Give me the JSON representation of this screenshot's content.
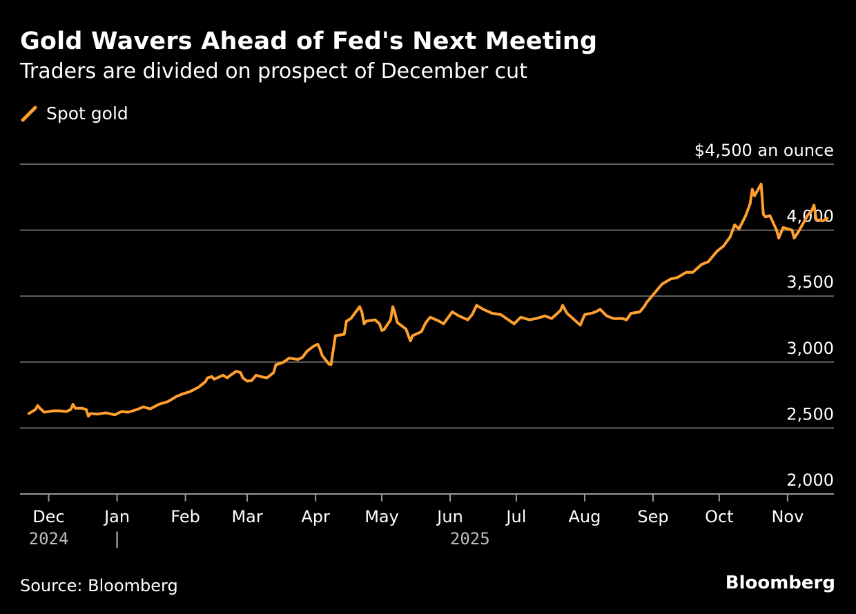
{
  "title": "Gold Wavers Ahead of Fed's Next Meeting",
  "subtitle": "Traders are divided on prospect of December cut",
  "source": "Source: Bloomberg",
  "logo": "Bloomberg",
  "colors": {
    "background": "#000000",
    "series": "#FF9F2E",
    "grid": "#666666",
    "text": "#FFFFFF",
    "year_label": "#BFBFBF"
  },
  "chart_data": {
    "type": "line",
    "ylim": [
      2000,
      4500
    ],
    "y_ticks": [
      {
        "value": 4500,
        "label": "$4,500 an ounce"
      },
      {
        "value": 4000,
        "label": "4,000"
      },
      {
        "value": 3500,
        "label": "3,500"
      },
      {
        "value": 3000,
        "label": "3,000"
      },
      {
        "value": 2500,
        "label": "2,500"
      },
      {
        "value": 2000,
        "label": "2,000"
      }
    ],
    "grid": true,
    "legend": "top-left",
    "xlim": [
      "2024-11-18",
      "2025-11-22"
    ],
    "x_ticks": [
      {
        "date": "2024-12-01",
        "label": "Dec"
      },
      {
        "date": "2025-01-01",
        "label": "Jan"
      },
      {
        "date": "2025-02-01",
        "label": "Feb"
      },
      {
        "date": "2025-03-01",
        "label": "Mar"
      },
      {
        "date": "2025-04-01",
        "label": "Apr"
      },
      {
        "date": "2025-05-01",
        "label": "May"
      },
      {
        "date": "2025-06-01",
        "label": "Jun"
      },
      {
        "date": "2025-07-01",
        "label": "Jul"
      },
      {
        "date": "2025-08-01",
        "label": "Aug"
      },
      {
        "date": "2025-09-01",
        "label": "Sep"
      },
      {
        "date": "2025-10-01",
        "label": "Oct"
      },
      {
        "date": "2025-11-01",
        "label": "Nov"
      }
    ],
    "year_labels": [
      {
        "label": "2024",
        "date": "2024-12-01"
      },
      {
        "label": "2025",
        "date": "2025-06-10"
      }
    ],
    "year_separator": "|",
    "series": [
      {
        "name": "Spot gold",
        "points": [
          [
            "2024-11-22",
            2610
          ],
          [
            "2024-11-25",
            2640
          ],
          [
            "2024-11-26",
            2670
          ],
          [
            "2024-11-27",
            2650
          ],
          [
            "2024-11-29",
            2620
          ],
          [
            "2024-12-03",
            2630
          ],
          [
            "2024-12-06",
            2630
          ],
          [
            "2024-12-09",
            2625
          ],
          [
            "2024-12-11",
            2640
          ],
          [
            "2024-12-12",
            2680
          ],
          [
            "2024-12-13",
            2650
          ],
          [
            "2024-12-16",
            2650
          ],
          [
            "2024-12-18",
            2640
          ],
          [
            "2024-12-19",
            2590
          ],
          [
            "2024-12-20",
            2610
          ],
          [
            "2024-12-23",
            2605
          ],
          [
            "2024-12-27",
            2615
          ],
          [
            "2024-12-31",
            2600
          ],
          [
            "2025-01-03",
            2625
          ],
          [
            "2025-01-06",
            2620
          ],
          [
            "2025-01-10",
            2640
          ],
          [
            "2025-01-13",
            2660
          ],
          [
            "2025-01-16",
            2645
          ],
          [
            "2025-01-20",
            2680
          ],
          [
            "2025-01-24",
            2700
          ],
          [
            "2025-01-28",
            2740
          ],
          [
            "2025-01-31",
            2760
          ],
          [
            "2025-02-03",
            2775
          ],
          [
            "2025-02-07",
            2810
          ],
          [
            "2025-02-10",
            2850
          ],
          [
            "2025-02-11",
            2880
          ],
          [
            "2025-02-13",
            2890
          ],
          [
            "2025-02-14",
            2870
          ],
          [
            "2025-02-18",
            2900
          ],
          [
            "2025-02-20",
            2880
          ],
          [
            "2025-02-21",
            2895
          ],
          [
            "2025-02-24",
            2930
          ],
          [
            "2025-02-26",
            2920
          ],
          [
            "2025-02-27",
            2880
          ],
          [
            "2025-03-01",
            2855
          ],
          [
            "2025-03-03",
            2860
          ],
          [
            "2025-03-05",
            2900
          ],
          [
            "2025-03-07",
            2890
          ],
          [
            "2025-03-10",
            2880
          ],
          [
            "2025-03-13",
            2920
          ],
          [
            "2025-03-14",
            2980
          ],
          [
            "2025-03-17",
            2995
          ],
          [
            "2025-03-20",
            3030
          ],
          [
            "2025-03-24",
            3020
          ],
          [
            "2025-03-26",
            3035
          ],
          [
            "2025-03-28",
            3080
          ],
          [
            "2025-03-31",
            3120
          ],
          [
            "2025-04-02",
            3135
          ],
          [
            "2025-04-03",
            3100
          ],
          [
            "2025-04-04",
            3050
          ],
          [
            "2025-04-07",
            2985
          ],
          [
            "2025-04-08",
            2980
          ],
          [
            "2025-04-09",
            3090
          ],
          [
            "2025-04-10",
            3200
          ],
          [
            "2025-04-14",
            3210
          ],
          [
            "2025-04-15",
            3310
          ],
          [
            "2025-04-17",
            3330
          ],
          [
            "2025-04-21",
            3420
          ],
          [
            "2025-04-22",
            3380
          ],
          [
            "2025-04-23",
            3290
          ],
          [
            "2025-04-24",
            3310
          ],
          [
            "2025-04-28",
            3320
          ],
          [
            "2025-04-30",
            3290
          ],
          [
            "2025-05-01",
            3240
          ],
          [
            "2025-05-02",
            3245
          ],
          [
            "2025-05-05",
            3320
          ],
          [
            "2025-05-06",
            3420
          ],
          [
            "2025-05-07",
            3370
          ],
          [
            "2025-05-08",
            3300
          ],
          [
            "2025-05-12",
            3250
          ],
          [
            "2025-05-14",
            3160
          ],
          [
            "2025-05-15",
            3200
          ],
          [
            "2025-05-19",
            3230
          ],
          [
            "2025-05-21",
            3300
          ],
          [
            "2025-05-23",
            3340
          ],
          [
            "2025-05-27",
            3310
          ],
          [
            "2025-05-29",
            3290
          ],
          [
            "2025-06-02",
            3380
          ],
          [
            "2025-06-05",
            3350
          ],
          [
            "2025-06-09",
            3320
          ],
          [
            "2025-06-11",
            3360
          ],
          [
            "2025-06-13",
            3430
          ],
          [
            "2025-06-16",
            3400
          ],
          [
            "2025-06-20",
            3370
          ],
          [
            "2025-06-24",
            3360
          ],
          [
            "2025-06-30",
            3290
          ],
          [
            "2025-07-03",
            3340
          ],
          [
            "2025-07-07",
            3320
          ],
          [
            "2025-07-10",
            3330
          ],
          [
            "2025-07-14",
            3350
          ],
          [
            "2025-07-17",
            3330
          ],
          [
            "2025-07-21",
            3390
          ],
          [
            "2025-07-22",
            3430
          ],
          [
            "2025-07-24",
            3370
          ],
          [
            "2025-07-28",
            3310
          ],
          [
            "2025-07-30",
            3280
          ],
          [
            "2025-08-01",
            3360
          ],
          [
            "2025-08-04",
            3370
          ],
          [
            "2025-08-06",
            3380
          ],
          [
            "2025-08-08",
            3400
          ],
          [
            "2025-08-11",
            3350
          ],
          [
            "2025-08-14",
            3330
          ],
          [
            "2025-08-18",
            3330
          ],
          [
            "2025-08-20",
            3320
          ],
          [
            "2025-08-22",
            3370
          ],
          [
            "2025-08-26",
            3380
          ],
          [
            "2025-08-28",
            3420
          ],
          [
            "2025-08-29",
            3450
          ],
          [
            "2025-09-02",
            3530
          ],
          [
            "2025-09-05",
            3590
          ],
          [
            "2025-09-09",
            3630
          ],
          [
            "2025-09-12",
            3640
          ],
          [
            "2025-09-16",
            3680
          ],
          [
            "2025-09-19",
            3680
          ],
          [
            "2025-09-23",
            3740
          ],
          [
            "2025-09-26",
            3760
          ],
          [
            "2025-09-30",
            3840
          ],
          [
            "2025-10-03",
            3880
          ],
          [
            "2025-10-06",
            3950
          ],
          [
            "2025-10-08",
            4040
          ],
          [
            "2025-10-10",
            4010
          ],
          [
            "2025-10-13",
            4110
          ],
          [
            "2025-10-15",
            4200
          ],
          [
            "2025-10-16",
            4310
          ],
          [
            "2025-10-17",
            4260
          ],
          [
            "2025-10-20",
            4350
          ],
          [
            "2025-10-21",
            4120
          ],
          [
            "2025-10-22",
            4100
          ],
          [
            "2025-10-24",
            4110
          ],
          [
            "2025-10-27",
            4000
          ],
          [
            "2025-10-28",
            3940
          ],
          [
            "2025-10-30",
            4020
          ],
          [
            "2025-11-03",
            4000
          ],
          [
            "2025-11-04",
            3940
          ],
          [
            "2025-11-06",
            3990
          ],
          [
            "2025-11-10",
            4110
          ],
          [
            "2025-11-12",
            4150
          ],
          [
            "2025-11-13",
            4190
          ],
          [
            "2025-11-14",
            4080
          ],
          [
            "2025-11-17",
            4070
          ],
          [
            "2025-11-19",
            4090
          ]
        ]
      }
    ]
  }
}
